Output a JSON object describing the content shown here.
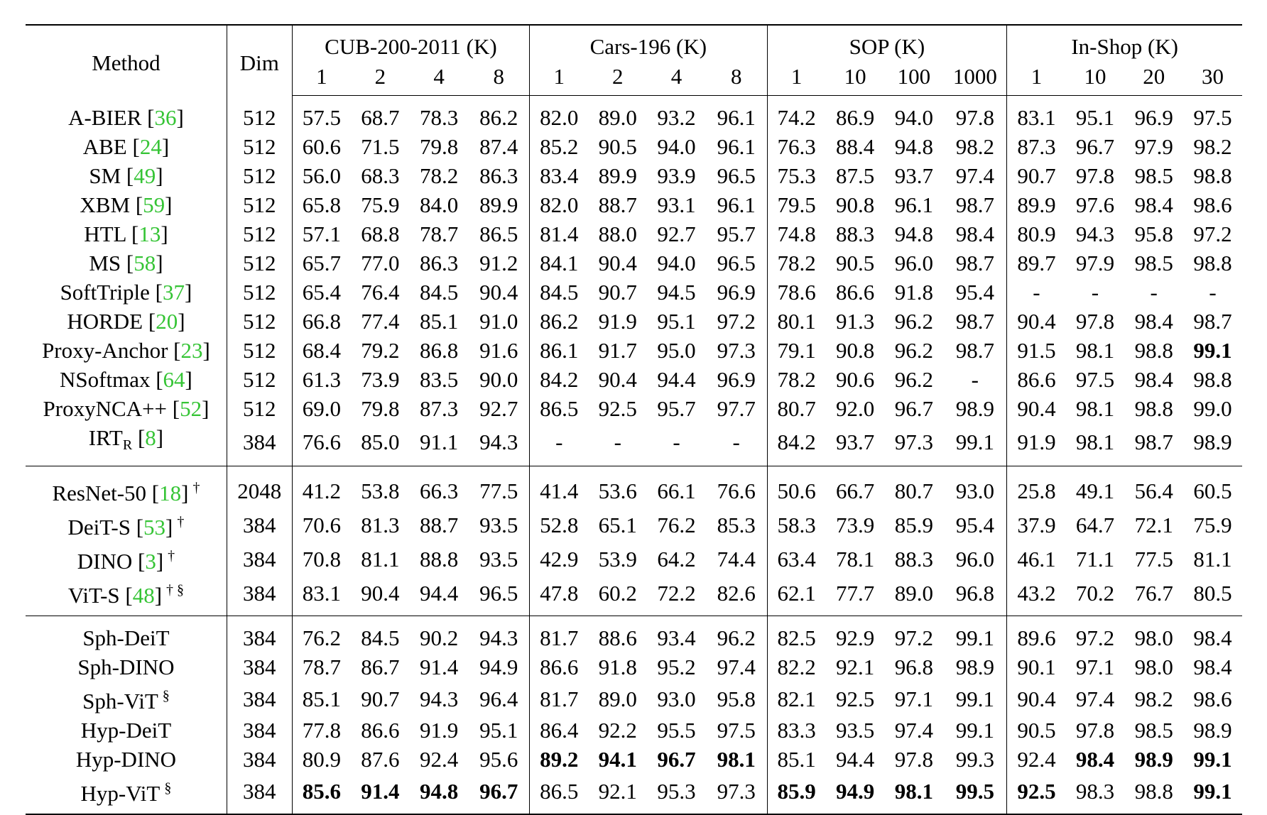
{
  "headers": {
    "method": "Method",
    "dim": "Dim",
    "groups": [
      {
        "name": "CUB-200-2011 (K)",
        "ks": [
          "1",
          "2",
          "4",
          "8"
        ]
      },
      {
        "name": "Cars-196 (K)",
        "ks": [
          "1",
          "2",
          "4",
          "8"
        ]
      },
      {
        "name": "SOP (K)",
        "ks": [
          "1",
          "10",
          "100",
          "1000"
        ]
      },
      {
        "name": "In-Shop (K)",
        "ks": [
          "1",
          "10",
          "20",
          "30"
        ]
      }
    ]
  },
  "sections": [
    {
      "rows": [
        {
          "name": "A-BIER",
          "ref": "36",
          "sup": "",
          "dim": "512",
          "vals": [
            "57.5",
            "68.7",
            "78.3",
            "86.2",
            "82.0",
            "89.0",
            "93.2",
            "96.1",
            "74.2",
            "86.9",
            "94.0",
            "97.8",
            "83.1",
            "95.1",
            "96.9",
            "97.5"
          ],
          "bold": []
        },
        {
          "name": "ABE",
          "ref": "24",
          "sup": "",
          "dim": "512",
          "vals": [
            "60.6",
            "71.5",
            "79.8",
            "87.4",
            "85.2",
            "90.5",
            "94.0",
            "96.1",
            "76.3",
            "88.4",
            "94.8",
            "98.2",
            "87.3",
            "96.7",
            "97.9",
            "98.2"
          ],
          "bold": []
        },
        {
          "name": "SM",
          "ref": "49",
          "sup": "",
          "dim": "512",
          "vals": [
            "56.0",
            "68.3",
            "78.2",
            "86.3",
            "83.4",
            "89.9",
            "93.9",
            "96.5",
            "75.3",
            "87.5",
            "93.7",
            "97.4",
            "90.7",
            "97.8",
            "98.5",
            "98.8"
          ],
          "bold": []
        },
        {
          "name": "XBM",
          "ref": "59",
          "sup": "",
          "dim": "512",
          "vals": [
            "65.8",
            "75.9",
            "84.0",
            "89.9",
            "82.0",
            "88.7",
            "93.1",
            "96.1",
            "79.5",
            "90.8",
            "96.1",
            "98.7",
            "89.9",
            "97.6",
            "98.4",
            "98.6"
          ],
          "bold": []
        },
        {
          "name": "HTL",
          "ref": "13",
          "sup": "",
          "dim": "512",
          "vals": [
            "57.1",
            "68.8",
            "78.7",
            "86.5",
            "81.4",
            "88.0",
            "92.7",
            "95.7",
            "74.8",
            "88.3",
            "94.8",
            "98.4",
            "80.9",
            "94.3",
            "95.8",
            "97.2"
          ],
          "bold": []
        },
        {
          "name": "MS",
          "ref": "58",
          "sup": "",
          "dim": "512",
          "vals": [
            "65.7",
            "77.0",
            "86.3",
            "91.2",
            "84.1",
            "90.4",
            "94.0",
            "96.5",
            "78.2",
            "90.5",
            "96.0",
            "98.7",
            "89.7",
            "97.9",
            "98.5",
            "98.8"
          ],
          "bold": []
        },
        {
          "name": "SoftTriple",
          "ref": "37",
          "sup": "",
          "dim": "512",
          "vals": [
            "65.4",
            "76.4",
            "84.5",
            "90.4",
            "84.5",
            "90.7",
            "94.5",
            "96.9",
            "78.6",
            "86.6",
            "91.8",
            "95.4",
            "-",
            "-",
            "-",
            "-"
          ],
          "bold": []
        },
        {
          "name": "HORDE",
          "ref": "20",
          "sup": "",
          "dim": "512",
          "vals": [
            "66.8",
            "77.4",
            "85.1",
            "91.0",
            "86.2",
            "91.9",
            "95.1",
            "97.2",
            "80.1",
            "91.3",
            "96.2",
            "98.7",
            "90.4",
            "97.8",
            "98.4",
            "98.7"
          ],
          "bold": []
        },
        {
          "name": "Proxy-Anchor",
          "ref": "23",
          "sup": "",
          "dim": "512",
          "vals": [
            "68.4",
            "79.2",
            "86.8",
            "91.6",
            "86.1",
            "91.7",
            "95.0",
            "97.3",
            "79.1",
            "90.8",
            "96.2",
            "98.7",
            "91.5",
            "98.1",
            "98.8",
            "99.1"
          ],
          "bold": [
            15
          ]
        },
        {
          "name": "NSoftmax",
          "ref": "64",
          "sup": "",
          "dim": "512",
          "vals": [
            "61.3",
            "73.9",
            "83.5",
            "90.0",
            "84.2",
            "90.4",
            "94.4",
            "96.9",
            "78.2",
            "90.6",
            "96.2",
            "-",
            "86.6",
            "97.5",
            "98.4",
            "98.8"
          ],
          "bold": []
        },
        {
          "name": "ProxyNCA++",
          "ref": "52",
          "sup": "",
          "dim": "512",
          "vals": [
            "69.0",
            "79.8",
            "87.3",
            "92.7",
            "86.5",
            "92.5",
            "95.7",
            "97.7",
            "80.7",
            "92.0",
            "96.7",
            "98.9",
            "90.4",
            "98.1",
            "98.8",
            "99.0"
          ],
          "bold": []
        },
        {
          "name": "IRT",
          "sub": "R",
          "ref": "8",
          "sup": "",
          "dim": "384",
          "vals": [
            "76.6",
            "85.0",
            "91.1",
            "94.3",
            "-",
            "-",
            "-",
            "-",
            "84.2",
            "93.7",
            "97.3",
            "99.1",
            "91.9",
            "98.1",
            "98.7",
            "98.9"
          ],
          "bold": []
        }
      ]
    },
    {
      "rows": [
        {
          "name": "ResNet-50",
          "ref": "18",
          "sup": "†",
          "dim": "2048",
          "vals": [
            "41.2",
            "53.8",
            "66.3",
            "77.5",
            "41.4",
            "53.6",
            "66.1",
            "76.6",
            "50.6",
            "66.7",
            "80.7",
            "93.0",
            "25.8",
            "49.1",
            "56.4",
            "60.5"
          ],
          "bold": []
        },
        {
          "name": "DeiT-S",
          "ref": "53",
          "sup": "†",
          "dim": "384",
          "vals": [
            "70.6",
            "81.3",
            "88.7",
            "93.5",
            "52.8",
            "65.1",
            "76.2",
            "85.3",
            "58.3",
            "73.9",
            "85.9",
            "95.4",
            "37.9",
            "64.7",
            "72.1",
            "75.9"
          ],
          "bold": []
        },
        {
          "name": "DINO",
          "ref": "3",
          "sup": "†",
          "dim": "384",
          "vals": [
            "70.8",
            "81.1",
            "88.8",
            "93.5",
            "42.9",
            "53.9",
            "64.2",
            "74.4",
            "63.4",
            "78.1",
            "88.3",
            "96.0",
            "46.1",
            "71.1",
            "77.5",
            "81.1"
          ],
          "bold": []
        },
        {
          "name": "ViT-S",
          "ref": "48",
          "sup": "† §",
          "dim": "384",
          "vals": [
            "83.1",
            "90.4",
            "94.4",
            "96.5",
            "47.8",
            "60.2",
            "72.2",
            "82.6",
            "62.1",
            "77.7",
            "89.0",
            "96.8",
            "43.2",
            "70.2",
            "76.7",
            "80.5"
          ],
          "bold": []
        }
      ]
    },
    {
      "rows": [
        {
          "name": "Sph-DeiT",
          "ref": "",
          "sup": "",
          "dim": "384",
          "vals": [
            "76.2",
            "84.5",
            "90.2",
            "94.3",
            "81.7",
            "88.6",
            "93.4",
            "96.2",
            "82.5",
            "92.9",
            "97.2",
            "99.1",
            "89.6",
            "97.2",
            "98.0",
            "98.4"
          ],
          "bold": []
        },
        {
          "name": "Sph-DINO",
          "ref": "",
          "sup": "",
          "dim": "384",
          "vals": [
            "78.7",
            "86.7",
            "91.4",
            "94.9",
            "86.6",
            "91.8",
            "95.2",
            "97.4",
            "82.2",
            "92.1",
            "96.8",
            "98.9",
            "90.1",
            "97.1",
            "98.0",
            "98.4"
          ],
          "bold": []
        },
        {
          "name": "Sph-ViT",
          "ref": "",
          "sup": "§",
          "dim": "384",
          "vals": [
            "85.1",
            "90.7",
            "94.3",
            "96.4",
            "81.7",
            "89.0",
            "93.0",
            "95.8",
            "82.1",
            "92.5",
            "97.1",
            "99.1",
            "90.4",
            "97.4",
            "98.2",
            "98.6"
          ],
          "bold": []
        },
        {
          "name": "Hyp-DeiT",
          "ref": "",
          "sup": "",
          "dim": "384",
          "vals": [
            "77.8",
            "86.6",
            "91.9",
            "95.1",
            "86.4",
            "92.2",
            "95.5",
            "97.5",
            "83.3",
            "93.5",
            "97.4",
            "99.1",
            "90.5",
            "97.8",
            "98.5",
            "98.9"
          ],
          "bold": []
        },
        {
          "name": "Hyp-DINO",
          "ref": "",
          "sup": "",
          "dim": "384",
          "vals": [
            "80.9",
            "87.6",
            "92.4",
            "95.6",
            "89.2",
            "94.1",
            "96.7",
            "98.1",
            "85.1",
            "94.4",
            "97.8",
            "99.3",
            "92.4",
            "98.4",
            "98.9",
            "99.1"
          ],
          "bold": [
            4,
            5,
            6,
            7,
            13,
            14,
            15
          ]
        },
        {
          "name": "Hyp-ViT",
          "ref": "",
          "sup": "§",
          "dim": "384",
          "vals": [
            "85.6",
            "91.4",
            "94.8",
            "96.7",
            "86.5",
            "92.1",
            "95.3",
            "97.3",
            "85.9",
            "94.9",
            "98.1",
            "99.5",
            "92.5",
            "98.3",
            "98.8",
            "99.1"
          ],
          "bold": [
            0,
            1,
            2,
            3,
            8,
            9,
            10,
            11,
            12,
            15
          ]
        }
      ]
    }
  ]
}
